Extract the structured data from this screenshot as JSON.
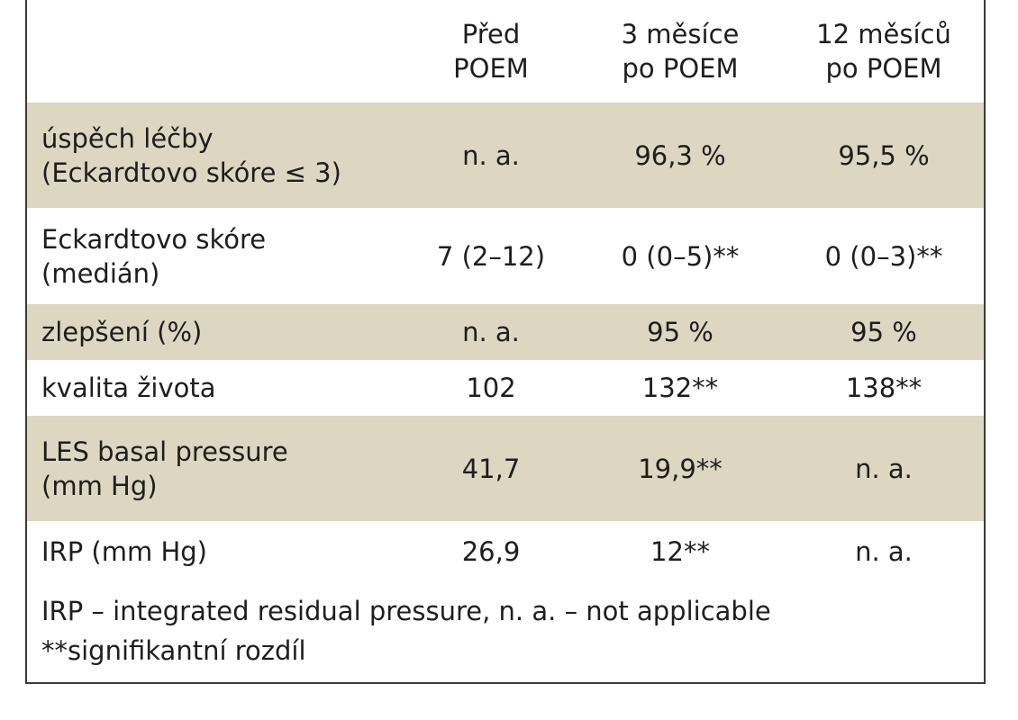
{
  "table": {
    "columns": [
      {
        "line1": "",
        "line2": ""
      },
      {
        "line1": "Před",
        "line2": "POEM"
      },
      {
        "line1": "3 měsíce",
        "line2": "po POEM"
      },
      {
        "line1": "12 měsíců",
        "line2": "po POEM"
      }
    ],
    "rows": [
      {
        "label1": "úspěch léčby",
        "label2": "(Eckardtovo skóre ≤ 3)",
        "before": "n. a.",
        "m3": "96,3 %",
        "m12": "95,5 %"
      },
      {
        "label1": "Eckardtovo skóre",
        "label2": "(medián)",
        "before": "7 (2–12)",
        "m3": "0 (0–5)**",
        "m12": "0 (0–3)**"
      },
      {
        "label1": "zlepšení (%)",
        "label2": "",
        "before": "n. a.",
        "m3": "95 %",
        "m12": "95 %"
      },
      {
        "label1": "kvalita života",
        "label2": "",
        "before": "102",
        "m3": "132**",
        "m12": "138**"
      },
      {
        "label1": "LES basal pressure",
        "label2": "(mm Hg)",
        "before": "41,7",
        "m3": "19,9**",
        "m12": "n. a."
      },
      {
        "label1": "IRP (mm Hg)",
        "label2": "",
        "before": "26,9",
        "m3": "12**",
        "m12": "n. a."
      }
    ],
    "footnotes": [
      "IRP – integrated residual pressure, n. a. – not applicable",
      "**signifikantní rozdíl"
    ]
  },
  "colors": {
    "row_shade": "#ddd6c1",
    "border": "#3a3a3a"
  }
}
